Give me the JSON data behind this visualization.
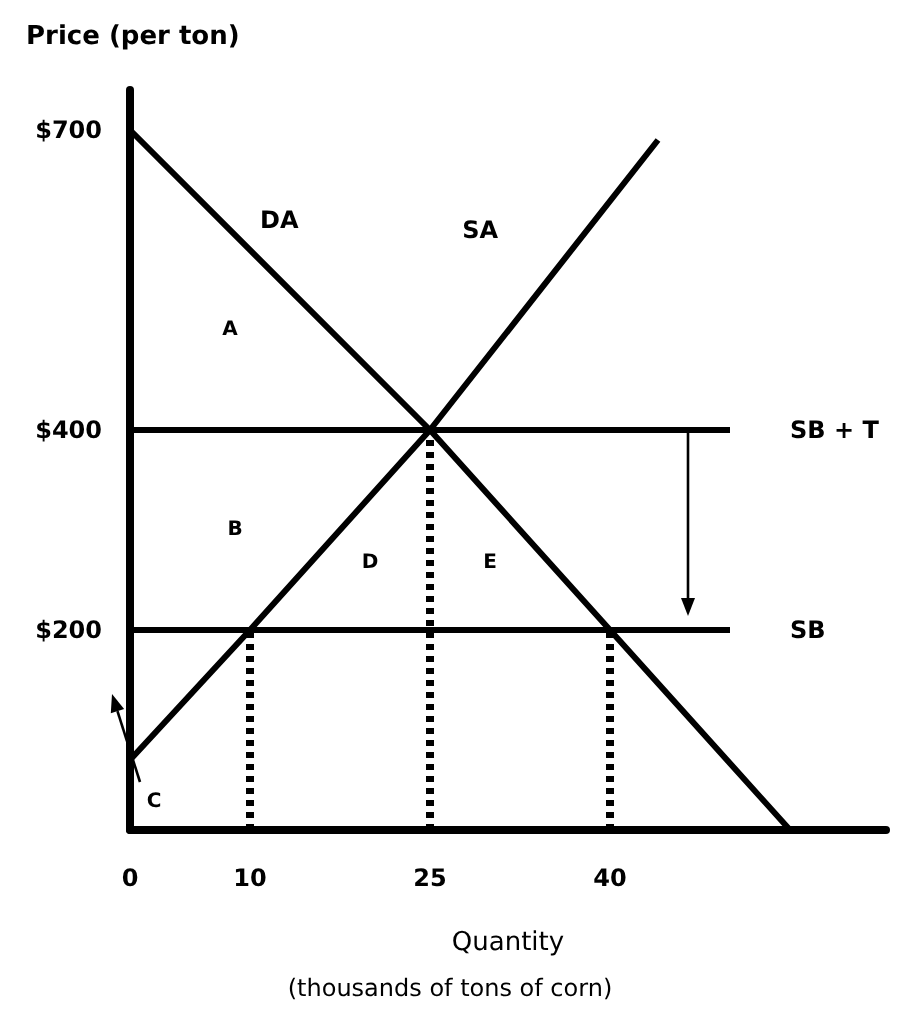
{
  "chart_data": {
    "type": "line",
    "ylabel": "Price (per ton)",
    "xlabel": "Quantity",
    "annotations": [
      "(thousands of tons of corn)",
      "A",
      "B",
      "C",
      "D",
      "E"
    ],
    "xlim": [
      0,
      63
    ],
    "xticks": [
      0,
      10,
      25,
      40
    ],
    "ylim": [
      0,
      740
    ],
    "yticks": [
      {
        "value": 200,
        "label": "$200"
      },
      {
        "value": 400,
        "label": "$400"
      },
      {
        "value": 700,
        "label": "$700"
      }
    ],
    "grid": false,
    "legend": false,
    "marker": "none",
    "series": [
      {
        "name": "DA",
        "color": "#000000",
        "x": [
          0,
          25,
          40,
          55
        ],
        "values": [
          700,
          400,
          200,
          0
        ]
      },
      {
        "name": "SA",
        "color": "#000000",
        "x": [
          0,
          10,
          25,
          44
        ],
        "values": [
          70,
          200,
          400,
          690
        ]
      },
      {
        "name": "SB + T",
        "color": "#000000",
        "x": [
          0,
          50
        ],
        "values": [
          400,
          400
        ]
      },
      {
        "name": "SB",
        "color": "#000000",
        "x": [
          0,
          50
        ],
        "values": [
          200,
          200
        ]
      },
      {
        "color": "#000000",
        "line_style": "dotted",
        "x": [
          10,
          10
        ],
        "values": [
          0,
          200
        ]
      },
      {
        "color": "#000000",
        "line_style": "dotted",
        "x": [
          25,
          25
        ],
        "values": [
          0,
          400
        ]
      },
      {
        "color": "#000000",
        "line_style": "dotted",
        "x": [
          40,
          40
        ],
        "values": [
          0,
          200
        ]
      }
    ]
  }
}
